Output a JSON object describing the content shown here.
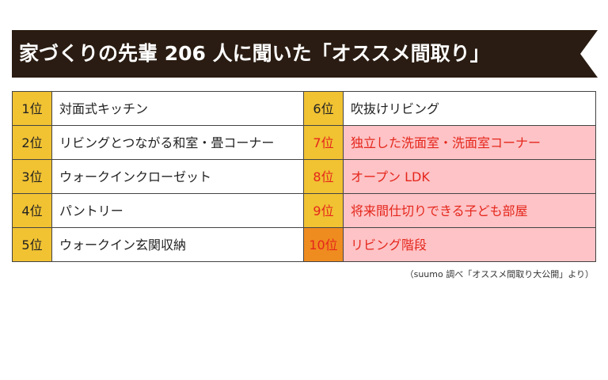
{
  "header": {
    "title": "家づくりの先輩 206 人に聞いた「オススメ間取り」"
  },
  "table": {
    "rows": [
      {
        "rank": "1位",
        "item": "対面式キッチン",
        "rank_color": "#f1c232",
        "highlight": false
      },
      {
        "rank": "2位",
        "item": "リビングとつながる和室・畳コーナー",
        "rank_color": "#f1c232",
        "highlight": false
      },
      {
        "rank": "3位",
        "item": "ウォークインクローゼット",
        "rank_color": "#f1c232",
        "highlight": false
      },
      {
        "rank": "4位",
        "item": "パントリー",
        "rank_color": "#f1c232",
        "highlight": false
      },
      {
        "rank": "5位",
        "item": "ウォークイン玄関収納",
        "rank_color": "#f1c232",
        "highlight": false
      },
      {
        "rank": "6位",
        "item": "吹抜けリビング",
        "rank_color": "#f1c232",
        "highlight": false
      },
      {
        "rank": "7位",
        "item": "独立した洗面室・洗面室コーナー",
        "rank_color": "#f1c232",
        "highlight": true
      },
      {
        "rank": "8位",
        "item": "オープン LDK",
        "rank_color": "#f1c232",
        "highlight": true
      },
      {
        "rank": "9位",
        "item": "将来間仕切りできる子ども部屋",
        "rank_color": "#f1c232",
        "highlight": true
      },
      {
        "rank": "10位",
        "item": "リビング階段",
        "rank_color": "#ef8c1f",
        "highlight": true
      }
    ]
  },
  "footnote": "（suumo 調べ「オススメ間取り大公開」より）"
}
